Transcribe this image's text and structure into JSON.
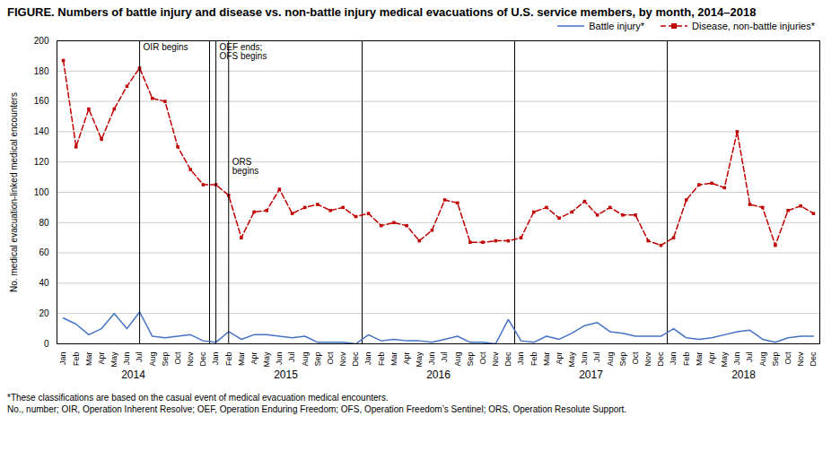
{
  "chart_data": {
    "type": "line",
    "title": "FIGURE. Numbers of battle injury and disease vs. non-battle injury medical evacuations of U.S. service members, by month, 2014–2018",
    "ylabel": "No. medical evacuation-linked medical encounters",
    "footnotes": [
      "*These classifications are based on the casual event of medical evacuation medical encounters.",
      "No., number; OIR, Operation Inherent Resolve; OEF, Operation Enduring Freedom; OFS, Operation Freedom’s Sentinel; ORS, Operation Resolute Support."
    ],
    "categories": [
      "Jan",
      "Feb",
      "Mar",
      "Apr",
      "May",
      "Jun",
      "Jul",
      "Aug",
      "Sep",
      "Oct",
      "Nov",
      "Dec",
      "Jan",
      "Feb",
      "Mar",
      "Apr",
      "May",
      "Jun",
      "Jul",
      "Aug",
      "Sep",
      "Oct",
      "Nov",
      "Dec",
      "Jan",
      "Feb",
      "Mar",
      "Apr",
      "May",
      "Jun",
      "Jul",
      "Aug",
      "Sep",
      "Oct",
      "Nov",
      "Dec",
      "Jan",
      "Feb",
      "Mar",
      "Apr",
      "May",
      "Jun",
      "Jul",
      "Aug",
      "Sep",
      "Oct",
      "Nov",
      "Dec",
      "Jan",
      "Feb",
      "Mar",
      "Apr",
      "May",
      "Jun",
      "Jul",
      "Aug",
      "Sep",
      "Oct",
      "Nov",
      "Dec"
    ],
    "series": [
      {
        "name": "Battle injury*",
        "color": "#4472C4",
        "line_style": "solid",
        "values": [
          17,
          13,
          6,
          10,
          20,
          10,
          21,
          5,
          4,
          5,
          6,
          2,
          1,
          8,
          3,
          6,
          6,
          5,
          4,
          5,
          1,
          1,
          1,
          0,
          6,
          2,
          3,
          2,
          2,
          1,
          3,
          5,
          1,
          1,
          0,
          16,
          2,
          1,
          5,
          3,
          7,
          12,
          14,
          8,
          7,
          5,
          5,
          5,
          10,
          4,
          3,
          4,
          6,
          8,
          9,
          3,
          1,
          4,
          5,
          5
        ]
      },
      {
        "name": "Disease, non-battle injuries*",
        "color": "#C00000",
        "line_style": "dashed",
        "marker": "square",
        "values": [
          187,
          130,
          155,
          135,
          155,
          170,
          182,
          162,
          160,
          130,
          115,
          105,
          105,
          98,
          70,
          87,
          88,
          102,
          86,
          90,
          92,
          88,
          90,
          84,
          86,
          78,
          80,
          78,
          68,
          75,
          95,
          93,
          67,
          67,
          68,
          68,
          70,
          87,
          90,
          83,
          87,
          94,
          85,
          90,
          85,
          85,
          68,
          65,
          70,
          95,
          105,
          106,
          103,
          140,
          92,
          90,
          65,
          88,
          91,
          86
        ]
      }
    ],
    "ylim": [
      0,
      200
    ],
    "yticks": [
      0,
      20,
      40,
      60,
      80,
      100,
      120,
      140,
      160,
      180,
      200
    ],
    "grid": true,
    "legend": "upper right",
    "x_groups": [
      {
        "label": "2014",
        "from": 0,
        "to": 11
      },
      {
        "label": "2015",
        "from": 12,
        "to": 23
      },
      {
        "label": "2016",
        "from": 24,
        "to": 35
      },
      {
        "label": "2017",
        "from": 36,
        "to": 47
      },
      {
        "label": "2018",
        "from": 48,
        "to": 59
      }
    ],
    "annotations": [
      {
        "text": "OIR begins",
        "x": 6,
        "y": 198
      },
      {
        "text": "OEF ends;\nOFS begins",
        "x": 12,
        "y": 198
      },
      {
        "text": "ORS\nbegins",
        "x": 13,
        "y": 122
      }
    ]
  }
}
